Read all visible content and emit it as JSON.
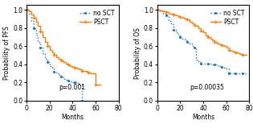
{
  "chart_data": [
    {
      "type": "step",
      "legend": "upper right",
      "xlabel": "Months",
      "ylabel": "Probability of PFS",
      "annotation": "p=0.001",
      "xlim": [
        0,
        80
      ],
      "ylim": [
        0.0,
        1.05
      ],
      "xticks": [
        0,
        20,
        40,
        60,
        80
      ],
      "yticks": [
        0.0,
        0.2,
        0.4,
        0.6,
        0.8,
        1.0
      ],
      "series": [
        {
          "name": "no SCT",
          "line_style": "dotted",
          "marker": ".",
          "x": [
            0,
            2,
            4,
            6,
            8,
            10,
            12,
            14,
            16,
            18,
            20,
            22,
            24,
            26,
            28,
            30,
            32,
            34,
            36,
            38,
            40,
            42,
            44,
            46,
            48,
            50
          ],
          "values": [
            1.0,
            0.95,
            0.88,
            0.8,
            0.72,
            0.65,
            0.58,
            0.52,
            0.46,
            0.42,
            0.38,
            0.35,
            0.32,
            0.3,
            0.28,
            0.26,
            0.24,
            0.23,
            0.22,
            0.21,
            0.2,
            0.2,
            0.19,
            0.18,
            0.0,
            0.0
          ]
        },
        {
          "name": "PSCT",
          "line_style": "solid",
          "marker": "+",
          "x": [
            0,
            2,
            4,
            6,
            8,
            10,
            12,
            14,
            16,
            18,
            20,
            22,
            24,
            26,
            28,
            30,
            32,
            34,
            36,
            38,
            40,
            42,
            44,
            46,
            48,
            50,
            52,
            54,
            56,
            58,
            60,
            62,
            64
          ],
          "values": [
            1.0,
            0.98,
            0.95,
            0.91,
            0.87,
            0.82,
            0.76,
            0.7,
            0.65,
            0.6,
            0.56,
            0.53,
            0.5,
            0.48,
            0.46,
            0.44,
            0.42,
            0.41,
            0.4,
            0.38,
            0.37,
            0.36,
            0.35,
            0.34,
            0.33,
            0.33,
            0.32,
            0.31,
            0.3,
            0.3,
            0.18,
            0.18,
            0.18
          ]
        }
      ]
    },
    {
      "type": "step",
      "legend": "upper right",
      "xlabel": "Months",
      "ylabel": "Probability of OS",
      "annotation": "p=0.00035",
      "xlim": [
        0,
        80
      ],
      "ylim": [
        0.0,
        1.05
      ],
      "xticks": [
        0,
        20,
        40,
        60,
        80
      ],
      "yticks": [
        0.0,
        0.2,
        0.4,
        0.6,
        0.8,
        1.0
      ],
      "series": [
        {
          "name": "no SCT",
          "line_style": "dotted",
          "marker": ".",
          "x": [
            0,
            2,
            5,
            8,
            10,
            12,
            14,
            16,
            18,
            20,
            22,
            24,
            26,
            28,
            30,
            32,
            34,
            36,
            38,
            40,
            42,
            44,
            46,
            48,
            50,
            52,
            54,
            56,
            58,
            60,
            62,
            64,
            66,
            68,
            70,
            72,
            74,
            76,
            78
          ],
          "values": [
            1.0,
            0.98,
            0.96,
            0.94,
            0.88,
            0.84,
            0.78,
            0.75,
            0.72,
            0.7,
            0.68,
            0.66,
            0.65,
            0.63,
            0.6,
            0.58,
            0.45,
            0.42,
            0.41,
            0.41,
            0.41,
            0.41,
            0.41,
            0.4,
            0.4,
            0.39,
            0.38,
            0.37,
            0.36,
            0.35,
            0.3,
            0.3,
            0.3,
            0.3,
            0.3,
            0.3,
            0.3,
            0.3,
            0.3
          ]
        },
        {
          "name": "PSCT",
          "line_style": "solid",
          "marker": "+",
          "x": [
            0,
            2,
            5,
            8,
            10,
            12,
            14,
            16,
            18,
            20,
            22,
            24,
            26,
            28,
            30,
            32,
            34,
            36,
            38,
            40,
            42,
            44,
            46,
            48,
            50,
            52,
            54,
            56,
            58,
            60,
            62,
            64,
            66,
            68,
            70,
            72,
            74,
            76,
            78
          ],
          "values": [
            1.0,
            0.99,
            0.98,
            0.97,
            0.96,
            0.96,
            0.95,
            0.94,
            0.93,
            0.92,
            0.91,
            0.9,
            0.89,
            0.87,
            0.85,
            0.83,
            0.82,
            0.8,
            0.77,
            0.75,
            0.72,
            0.7,
            0.68,
            0.66,
            0.65,
            0.63,
            0.62,
            0.61,
            0.6,
            0.58,
            0.56,
            0.55,
            0.54,
            0.53,
            0.52,
            0.51,
            0.5,
            0.5,
            0.5
          ]
        }
      ]
    }
  ]
}
